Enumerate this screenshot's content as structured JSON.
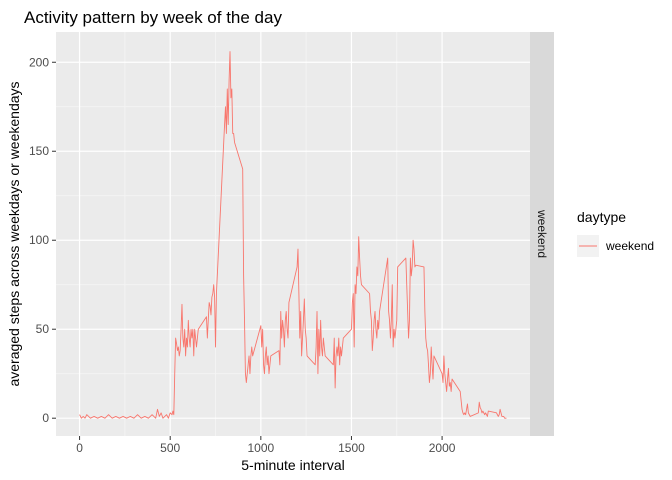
{
  "chart_data": {
    "type": "line",
    "title": "Activity pattern by week of the day",
    "xlabel": "5-minute interval",
    "ylabel": "averaged steps across weekdays or weekendays",
    "xlim": [
      -130,
      2485
    ],
    "ylim": [
      -10,
      217
    ],
    "x_ticks": [
      0,
      500,
      1000,
      1500,
      2000
    ],
    "y_ticks": [
      0,
      50,
      100,
      150,
      200
    ],
    "grid": true,
    "facet_strip": "weekend",
    "legend": {
      "title": "daytype",
      "position": "right",
      "entries": [
        "weekend"
      ]
    },
    "colors": {
      "series": "#f8766d",
      "panel": "#ebebeb",
      "grid": "#ffffff",
      "strip": "#d9d9d9"
    },
    "series": [
      {
        "name": "weekend",
        "points": [
          [
            0,
            2
          ],
          [
            10,
            0
          ],
          [
            20,
            1
          ],
          [
            30,
            0
          ],
          [
            40,
            2
          ],
          [
            50,
            1
          ],
          [
            60,
            0
          ],
          [
            80,
            1
          ],
          [
            100,
            0
          ],
          [
            120,
            1
          ],
          [
            140,
            0
          ],
          [
            160,
            2
          ],
          [
            180,
            0
          ],
          [
            200,
            1
          ],
          [
            220,
            0
          ],
          [
            240,
            1
          ],
          [
            260,
            0
          ],
          [
            280,
            1
          ],
          [
            300,
            0
          ],
          [
            320,
            2
          ],
          [
            340,
            0
          ],
          [
            360,
            1
          ],
          [
            380,
            0
          ],
          [
            400,
            2
          ],
          [
            420,
            0
          ],
          [
            430,
            5
          ],
          [
            440,
            1
          ],
          [
            450,
            3
          ],
          [
            460,
            0
          ],
          [
            480,
            2
          ],
          [
            490,
            0
          ],
          [
            500,
            3
          ],
          [
            510,
            2
          ],
          [
            515,
            4
          ],
          [
            520,
            2
          ],
          [
            525,
            25
          ],
          [
            530,
            45
          ],
          [
            535,
            42
          ],
          [
            540,
            38
          ],
          [
            545,
            40
          ],
          [
            550,
            35
          ],
          [
            555,
            38
          ],
          [
            560,
            50
          ],
          [
            565,
            64
          ],
          [
            570,
            45
          ],
          [
            575,
            40
          ],
          [
            580,
            50
          ],
          [
            585,
            35
          ],
          [
            590,
            45
          ],
          [
            595,
            40
          ],
          [
            600,
            55
          ],
          [
            605,
            45
          ],
          [
            610,
            40
          ],
          [
            615,
            50
          ],
          [
            620,
            45
          ],
          [
            625,
            50
          ],
          [
            630,
            35
          ],
          [
            635,
            50
          ],
          [
            640,
            45
          ],
          [
            645,
            40
          ],
          [
            650,
            45
          ],
          [
            655,
            50
          ],
          [
            700,
            57
          ],
          [
            705,
            45
          ],
          [
            710,
            55
          ],
          [
            715,
            65
          ],
          [
            720,
            63
          ],
          [
            725,
            58
          ],
          [
            730,
            68
          ],
          [
            735,
            70
          ],
          [
            740,
            75
          ],
          [
            745,
            68
          ],
          [
            750,
            40
          ],
          [
            755,
            70
          ],
          [
            800,
            165
          ],
          [
            805,
            175
          ],
          [
            810,
            160
          ],
          [
            815,
            185
          ],
          [
            820,
            165
          ],
          [
            825,
            190
          ],
          [
            830,
            206
          ],
          [
            835,
            180
          ],
          [
            840,
            185
          ],
          [
            845,
            160
          ],
          [
            850,
            160
          ],
          [
            855,
            155
          ],
          [
            900,
            140
          ],
          [
            905,
            80
          ],
          [
            910,
            55
          ],
          [
            915,
            25
          ],
          [
            920,
            20
          ],
          [
            925,
            25
          ],
          [
            930,
            30
          ],
          [
            935,
            35
          ],
          [
            940,
            25
          ],
          [
            945,
            35
          ],
          [
            950,
            40
          ],
          [
            955,
            35
          ],
          [
            1000,
            52
          ],
          [
            1005,
            40
          ],
          [
            1010,
            50
          ],
          [
            1015,
            30
          ],
          [
            1020,
            25
          ],
          [
            1025,
            35
          ],
          [
            1030,
            40
          ],
          [
            1035,
            30
          ],
          [
            1040,
            35
          ],
          [
            1045,
            25
          ],
          [
            1050,
            30
          ],
          [
            1055,
            35
          ],
          [
            1100,
            38
          ],
          [
            1105,
            30
          ],
          [
            1110,
            60
          ],
          [
            1115,
            45
          ],
          [
            1120,
            55
          ],
          [
            1125,
            50
          ],
          [
            1130,
            40
          ],
          [
            1135,
            55
          ],
          [
            1140,
            60
          ],
          [
            1145,
            50
          ],
          [
            1150,
            45
          ],
          [
            1155,
            65
          ],
          [
            1200,
            85
          ],
          [
            1205,
            95
          ],
          [
            1210,
            70
          ],
          [
            1215,
            45
          ],
          [
            1220,
            60
          ],
          [
            1225,
            35
          ],
          [
            1230,
            45
          ],
          [
            1235,
            55
          ],
          [
            1240,
            67
          ],
          [
            1245,
            50
          ],
          [
            1250,
            45
          ],
          [
            1255,
            35
          ],
          [
            1300,
            30
          ],
          [
            1305,
            40
          ],
          [
            1310,
            60
          ],
          [
            1315,
            25
          ],
          [
            1320,
            50
          ],
          [
            1325,
            35
          ],
          [
            1330,
            55
          ],
          [
            1335,
            40
          ],
          [
            1340,
            35
          ],
          [
            1345,
            45
          ],
          [
            1350,
            40
          ],
          [
            1355,
            35
          ],
          [
            1400,
            30
          ],
          [
            1405,
            45
          ],
          [
            1410,
            17
          ],
          [
            1415,
            35
          ],
          [
            1420,
            40
          ],
          [
            1425,
            35
          ],
          [
            1430,
            45
          ],
          [
            1435,
            30
          ],
          [
            1440,
            40
          ],
          [
            1445,
            35
          ],
          [
            1450,
            40
          ],
          [
            1455,
            45
          ],
          [
            1500,
            50
          ],
          [
            1505,
            65
          ],
          [
            1510,
            70
          ],
          [
            1515,
            40
          ],
          [
            1520,
            75
          ],
          [
            1525,
            70
          ],
          [
            1530,
            85
          ],
          [
            1535,
            80
          ],
          [
            1540,
            102
          ],
          [
            1545,
            90
          ],
          [
            1550,
            80
          ],
          [
            1555,
            75
          ],
          [
            1600,
            70
          ],
          [
            1605,
            60
          ],
          [
            1610,
            55
          ],
          [
            1615,
            38
          ],
          [
            1620,
            45
          ],
          [
            1625,
            55
          ],
          [
            1630,
            60
          ],
          [
            1635,
            50
          ],
          [
            1640,
            45
          ],
          [
            1645,
            55
          ],
          [
            1650,
            50
          ],
          [
            1655,
            60
          ],
          [
            1700,
            90
          ],
          [
            1705,
            60
          ],
          [
            1710,
            55
          ],
          [
            1715,
            45
          ],
          [
            1720,
            55
          ],
          [
            1725,
            75
          ],
          [
            1730,
            40
          ],
          [
            1735,
            50
          ],
          [
            1740,
            45
          ],
          [
            1745,
            50
          ],
          [
            1750,
            55
          ],
          [
            1755,
            85
          ],
          [
            1800,
            90
          ],
          [
            1805,
            75
          ],
          [
            1810,
            60
          ],
          [
            1815,
            45
          ],
          [
            1820,
            55
          ],
          [
            1825,
            90
          ],
          [
            1830,
            80
          ],
          [
            1835,
            85
          ],
          [
            1840,
            100
          ],
          [
            1845,
            95
          ],
          [
            1850,
            85
          ],
          [
            1855,
            86
          ],
          [
            1900,
            85
          ],
          [
            1905,
            60
          ],
          [
            1910,
            45
          ],
          [
            1915,
            40
          ],
          [
            1920,
            38
          ],
          [
            1925,
            30
          ],
          [
            1930,
            20
          ],
          [
            1935,
            25
          ],
          [
            1940,
            40
          ],
          [
            1945,
            30
          ],
          [
            1950,
            22
          ],
          [
            1955,
            35
          ],
          [
            2000,
            25
          ],
          [
            2005,
            20
          ],
          [
            2010,
            35
          ],
          [
            2015,
            25
          ],
          [
            2020,
            20
          ],
          [
            2025,
            15
          ],
          [
            2030,
            22
          ],
          [
            2035,
            28
          ],
          [
            2040,
            18
          ],
          [
            2045,
            20
          ],
          [
            2050,
            15
          ],
          [
            2055,
            22
          ],
          [
            2100,
            15
          ],
          [
            2105,
            10
          ],
          [
            2110,
            5
          ],
          [
            2115,
            3
          ],
          [
            2120,
            2
          ],
          [
            2125,
            3
          ],
          [
            2130,
            2
          ],
          [
            2135,
            5
          ],
          [
            2140,
            8
          ],
          [
            2145,
            3
          ],
          [
            2150,
            2
          ],
          [
            2155,
            1
          ],
          [
            2200,
            3
          ],
          [
            2205,
            9
          ],
          [
            2210,
            6
          ],
          [
            2215,
            5
          ],
          [
            2220,
            3
          ],
          [
            2225,
            4
          ],
          [
            2230,
            3
          ],
          [
            2235,
            2
          ],
          [
            2240,
            3
          ],
          [
            2245,
            2
          ],
          [
            2250,
            1
          ],
          [
            2255,
            4
          ],
          [
            2300,
            3
          ],
          [
            2305,
            2
          ],
          [
            2310,
            1
          ],
          [
            2315,
            2
          ],
          [
            2320,
            5
          ],
          [
            2325,
            3
          ],
          [
            2330,
            1
          ],
          [
            2335,
            1
          ],
          [
            2340,
            1
          ],
          [
            2345,
            0
          ],
          [
            2350,
            0
          ],
          [
            2355,
            0
          ]
        ]
      }
    ]
  }
}
